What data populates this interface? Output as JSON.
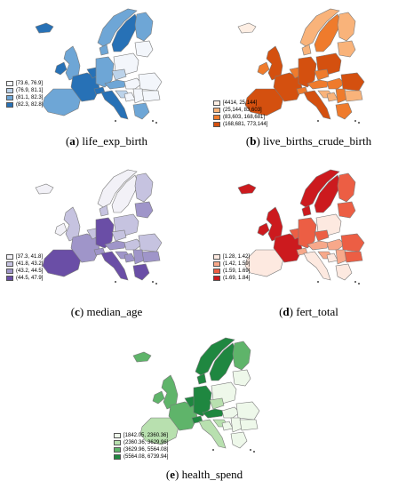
{
  "panels": [
    {
      "id": "a",
      "letter": "a",
      "variable": "life_exp_birth",
      "palette": [
        "#f3f6fb",
        "#bcd3ea",
        "#6ea6d6",
        "#2771b6"
      ],
      "legend": [
        "[73.6, 76.9]",
        "(76.9, 81.1]",
        "(81.1, 82.3]",
        "(82.3, 82.8]"
      ]
    },
    {
      "id": "b",
      "letter": "b",
      "variable": "live_births_crude_birth",
      "palette": [
        "#fdeee3",
        "#f9b37a",
        "#ef7b2c",
        "#d4500f"
      ],
      "legend": [
        "[4414, 25,144]",
        "(25,144, 83,603]",
        "(83,603, 168,681]",
        "(168,681, 773,144]"
      ]
    },
    {
      "id": "c",
      "letter": "c",
      "variable": "median_age",
      "palette": [
        "#f2f1f7",
        "#c6c3e0",
        "#9f95c9",
        "#6a4ea6"
      ],
      "legend": [
        "[37.3, 41.8]",
        "(41.8, 43.2]",
        "(43.2, 44.5]",
        "(44.5, 47.9]"
      ]
    },
    {
      "id": "d",
      "letter": "d",
      "variable": "fert_total",
      "palette": [
        "#fde9e0",
        "#f7a88a",
        "#ec5e44",
        "#cc1a1e"
      ],
      "legend": [
        "[1.28, 1.42]",
        "(1.42, 1.59]",
        "(1.59, 1.69]",
        "(1.69, 1.84]"
      ]
    },
    {
      "id": "e",
      "letter": "e",
      "variable": "health_spend",
      "palette": [
        "#eef8ea",
        "#b8e0af",
        "#5fb46a",
        "#1f8740"
      ],
      "legend": [
        "[1842.05, 2360.36]",
        "(2360.36, 3629.96]",
        "(3629.96, 5564.08]",
        "(5564.08, 6739.94]"
      ]
    }
  ],
  "region_classes": {
    "a": {
      "IB": 2,
      "FR": 3,
      "UK": 2,
      "IE": 3,
      "BX": 3,
      "DE": 2,
      "AT": 2,
      "CH": 3,
      "IT": 3,
      "NO": 2,
      "SE": 3,
      "FI": 2,
      "DK": 2,
      "PL": 0,
      "CZ": 1,
      "HU": 0,
      "RO": 0,
      "BG": 0,
      "BA": 0,
      "HR": 1,
      "RS": 0,
      "GR": 2,
      "BAL": 0,
      "IS": 3
    },
    "b": {
      "IB": 3,
      "FR": 3,
      "UK": 3,
      "IE": 2,
      "BX": 2,
      "DE": 3,
      "AT": 2,
      "CH": 2,
      "IT": 3,
      "NO": 1,
      "SE": 2,
      "FI": 1,
      "DK": 1,
      "PL": 3,
      "CZ": 2,
      "HU": 2,
      "RO": 3,
      "BG": 1,
      "BA": 1,
      "HR": 1,
      "RS": 2,
      "GR": 2,
      "BAL": 1,
      "IS": 0
    },
    "c": {
      "IB": 3,
      "FR": 2,
      "UK": 1,
      "IE": 0,
      "BX": 1,
      "DE": 3,
      "AT": 2,
      "CH": 2,
      "IT": 3,
      "NO": 0,
      "SE": 0,
      "FI": 1,
      "DK": 1,
      "PL": 1,
      "CZ": 1,
      "HU": 1,
      "RO": 1,
      "BG": 2,
      "BA": 2,
      "HR": 2,
      "RS": 2,
      "GR": 3,
      "BAL": 2,
      "IS": 0
    },
    "d": {
      "IB": 0,
      "FR": 3,
      "UK": 3,
      "IE": 3,
      "BX": 2,
      "DE": 2,
      "AT": 1,
      "CH": 1,
      "IT": 0,
      "NO": 3,
      "SE": 3,
      "FI": 2,
      "DK": 3,
      "PL": 0,
      "CZ": 2,
      "HU": 1,
      "RO": 2,
      "BG": 2,
      "BA": 0,
      "HR": 1,
      "RS": 1,
      "GR": 0,
      "BAL": 2,
      "IS": 3
    },
    "e": {
      "IB": 1,
      "FR": 2,
      "UK": 2,
      "IE": 2,
      "BX": 3,
      "DE": 3,
      "AT": 3,
      "CH": 3,
      "IT": 1,
      "NO": 3,
      "SE": 3,
      "FI": 2,
      "DK": 3,
      "PL": 0,
      "CZ": 1,
      "HU": 0,
      "RO": 0,
      "BG": 0,
      "BA": 0,
      "HR": 1,
      "RS": 0,
      "GR": 0,
      "BAL": 0,
      "IS": 2
    }
  }
}
